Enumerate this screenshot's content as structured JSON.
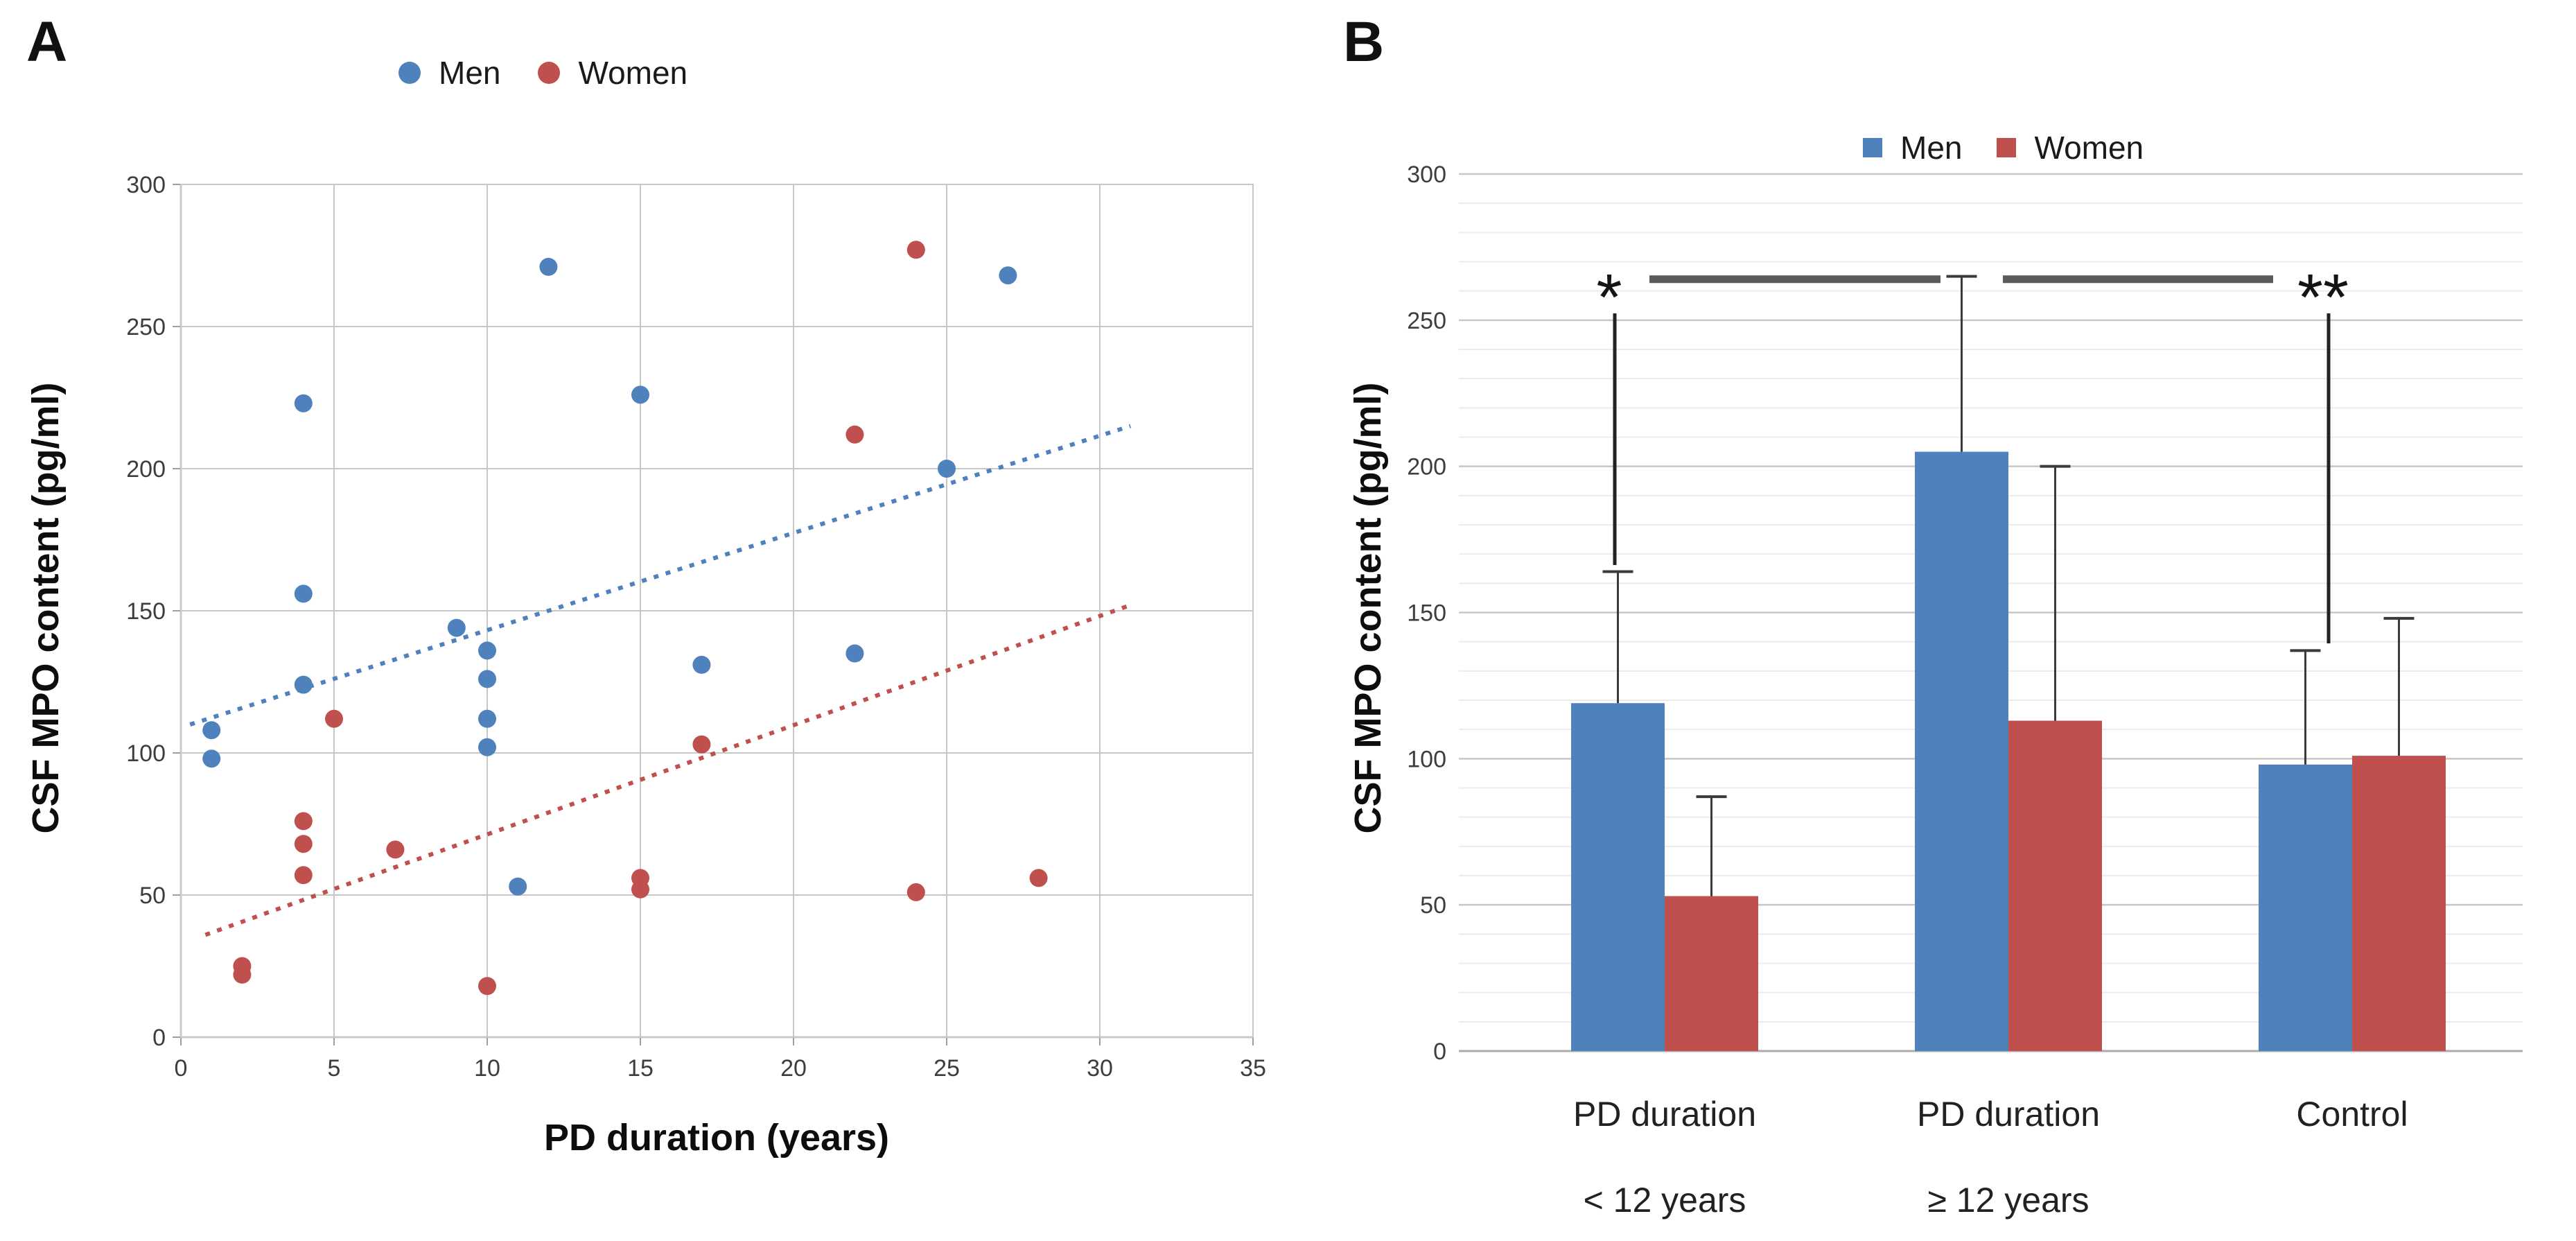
{
  "figure": {
    "panel_a": {
      "letter": "A"
    },
    "panel_b": {
      "letter": "B"
    }
  },
  "colors": {
    "men": "#4f81bd",
    "women": "#c0504d",
    "grid_major": "#c7c7c7",
    "grid_minor": "#ececec",
    "axis_line": "#9f9f9f",
    "tick_text": "#3d3d3d",
    "sig_bracket": "#5b5b5b",
    "sig_line": "#222222"
  },
  "chart_data": [
    {
      "id": "panel_a",
      "type": "scatter",
      "xlabel": "PD duration (years)",
      "ylabel": "CSF MPO content (pg/ml)",
      "xlim": [
        0,
        35
      ],
      "ylim": [
        0,
        300
      ],
      "x_ticks": [
        0,
        5,
        10,
        15,
        20,
        25,
        30,
        35
      ],
      "y_ticks": [
        0,
        50,
        100,
        150,
        200,
        250,
        300
      ],
      "grid": "both",
      "legend_position": "top-center",
      "series": [
        {
          "name": "Men",
          "color": "#4f81bd",
          "points": [
            [
              1,
              108
            ],
            [
              1,
              98
            ],
            [
              4,
              223
            ],
            [
              4,
              156
            ],
            [
              4,
              124
            ],
            [
              9,
              144
            ],
            [
              10,
              136
            ],
            [
              10,
              126
            ],
            [
              10,
              112
            ],
            [
              10,
              102
            ],
            [
              11,
              53
            ],
            [
              12,
              271
            ],
            [
              15,
              226
            ],
            [
              17,
              131
            ],
            [
              22,
              135
            ],
            [
              25,
              200
            ],
            [
              27,
              268
            ]
          ]
        },
        {
          "name": "Women",
          "color": "#c0504d",
          "points": [
            [
              2,
              25
            ],
            [
              2,
              22
            ],
            [
              4,
              76
            ],
            [
              4,
              68
            ],
            [
              4,
              57
            ],
            [
              5,
              112
            ],
            [
              7,
              66
            ],
            [
              10,
              18
            ],
            [
              15,
              56
            ],
            [
              15,
              52
            ],
            [
              17,
              103
            ],
            [
              22,
              212
            ],
            [
              24,
              277
            ],
            [
              24,
              51
            ],
            [
              28,
              56
            ]
          ]
        }
      ],
      "trendlines": [
        {
          "name": "Men trend",
          "color": "#4f81bd",
          "from": [
            0.3,
            110
          ],
          "to": [
            31,
            215
          ]
        },
        {
          "name": "Women trend",
          "color": "#c0504d",
          "from": [
            0.8,
            36
          ],
          "to": [
            31,
            152
          ]
        }
      ]
    },
    {
      "id": "panel_b",
      "type": "bar",
      "ylabel": "CSF MPO content (pg/ml)",
      "ylim": [
        0,
        300
      ],
      "y_ticks": [
        0,
        50,
        100,
        150,
        200,
        250,
        300
      ],
      "minor_grid_step": 10,
      "legend_position": "top-center",
      "categories": [
        [
          "PD duration",
          "< 12 years"
        ],
        [
          "PD duration",
          "≥ 12 years"
        ],
        [
          "Control",
          ""
        ]
      ],
      "series": [
        {
          "name": "Men",
          "color": "#4f81bd",
          "values": [
            119,
            205,
            98
          ],
          "error_top": [
            164,
            265,
            137
          ]
        },
        {
          "name": "Women",
          "color": "#c0504d",
          "values": [
            53,
            113,
            101
          ],
          "error_top": [
            87,
            200,
            148
          ]
        }
      ],
      "significance": {
        "left_symbol": "*",
        "right_symbol": "**",
        "bracket_y": 264,
        "connects": [
          "PD duration < 12 years",
          "PD duration ≥ 12 years",
          "Control"
        ]
      }
    }
  ]
}
